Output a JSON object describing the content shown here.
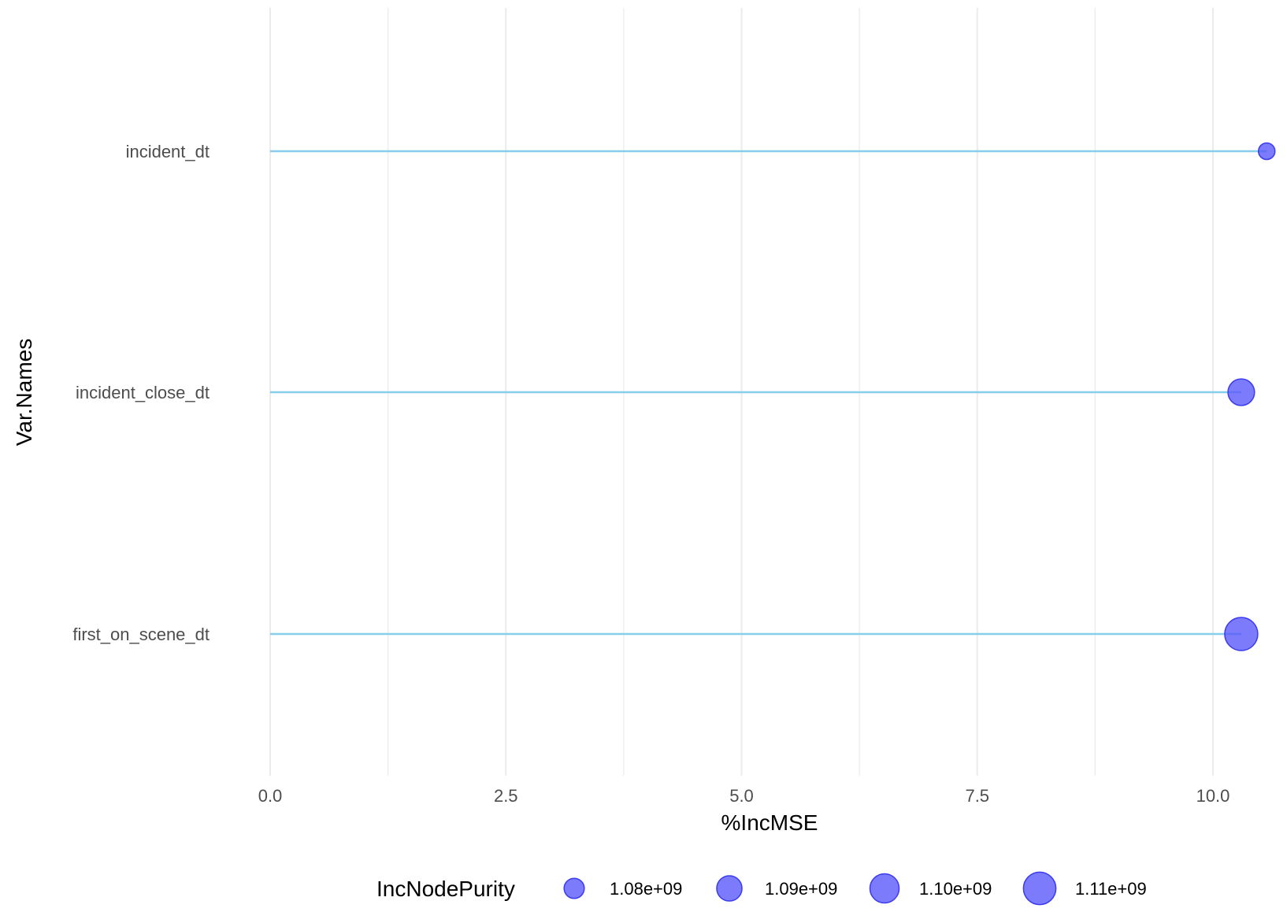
{
  "chart_data": {
    "type": "lollipop",
    "xlabel": "%IncMSE",
    "ylabel": "Var.Names",
    "xlim": [
      0,
      10.6
    ],
    "xticks": [
      0.0,
      2.5,
      5.0,
      7.5,
      10.0
    ],
    "xtick_labels": [
      "0.0",
      "2.5",
      "5.0",
      "7.5",
      "10.0"
    ],
    "grid": true,
    "categories": [
      "incident_dt",
      "incident_close_dt",
      "first_on_scene_dt"
    ],
    "x": [
      10.57,
      10.3,
      10.3
    ],
    "size_values": [
      1075000000.0,
      1093000000.0,
      1112000000.0
    ],
    "legend": {
      "title": "IncNodePurity",
      "position": "bottom",
      "entries": [
        {
          "label": "1.08e+09",
          "value": 1080000000.0
        },
        {
          "label": "1.09e+09",
          "value": 1090000000.0
        },
        {
          "label": "1.10e+09",
          "value": 1100000000.0
        },
        {
          "label": "1.11e+09",
          "value": 1110000000.0
        }
      ]
    },
    "colors": {
      "stem": "#87ceeb",
      "point_fill": "#5a5afa",
      "point_stroke": "#3b3bf0",
      "grid": "#ebebeb"
    }
  }
}
